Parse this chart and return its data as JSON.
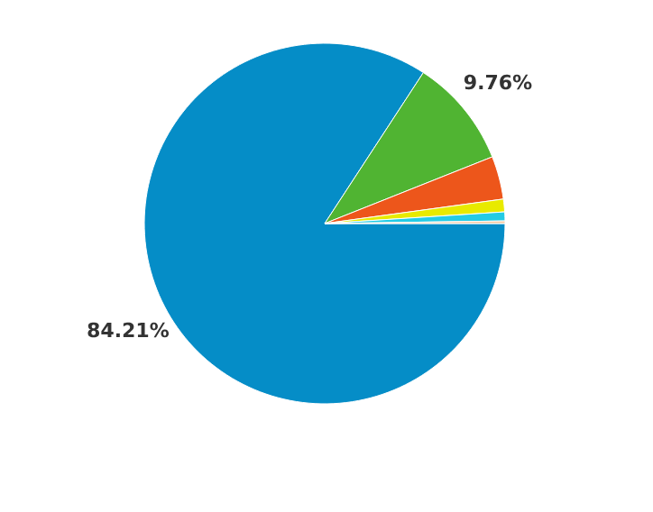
{
  "chart_data": {
    "type": "pie",
    "categories": [
      null,
      null,
      null,
      null,
      null,
      null
    ],
    "values": [
      84.21,
      9.76,
      3.86,
      1.14,
      0.8,
      0.23
    ],
    "colors": [
      "#058dc7",
      "#50b432",
      "#ed561b",
      "#e8ea00",
      "#24cbe5",
      "#f5c9a0"
    ],
    "value_labels": [
      "84.21%",
      "9.76%",
      null,
      null,
      null,
      null
    ]
  }
}
